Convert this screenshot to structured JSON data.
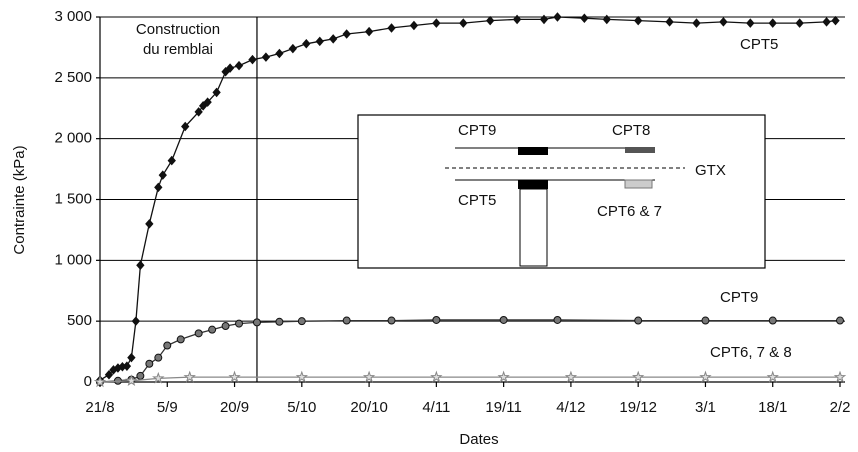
{
  "chart_data": {
    "type": "line",
    "x_label": "Dates",
    "y_label": "Contrainte (kPa)",
    "xlim": [
      "21/8",
      "2/2"
    ],
    "xticks": [
      "21/8",
      "5/9",
      "20/9",
      "5/10",
      "20/10",
      "4/11",
      "19/11",
      "4/12",
      "19/12",
      "3/1",
      "18/1",
      "2/2"
    ],
    "ylim": [
      0,
      3000
    ],
    "yticks": [
      0,
      500,
      {
        "value": 1000,
        "label": "1 000"
      },
      {
        "value": 1500,
        "label": "1 500"
      },
      {
        "value": 2000,
        "label": "2 000"
      },
      {
        "value": 2500,
        "label": "2 500"
      },
      {
        "value": 3000,
        "label": "3 000"
      }
    ],
    "grid": true,
    "annotation": {
      "lines": [
        "Construction",
        "du remblai"
      ],
      "x": "25/9"
    },
    "series": [
      {
        "name": "CPT5",
        "color": "#111111",
        "marker": "diamond",
        "x": [
          "21/8",
          "23/8",
          "24/8",
          "25/8",
          "26/8",
          "27/8",
          "28/8",
          "29/8",
          "30/8",
          "1/9",
          "3/9",
          "4/9",
          "6/9",
          "9/9",
          "12/9",
          "13/9",
          "14/9",
          "16/9",
          "18/9",
          "19/9",
          "21/9",
          "24/9",
          "27/9",
          "30/9",
          "3/10",
          "6/10",
          "9/10",
          "12/10",
          "15/10",
          "20/10",
          "25/10",
          "30/10",
          "4/11",
          "10/11",
          "16/11",
          "22/11",
          "28/11",
          "1/12",
          "7/12",
          "12/12",
          "19/12",
          "26/12",
          "1/1",
          "7/1",
          "13/1",
          "18/1",
          "24/1",
          "30/1",
          "1/2"
        ],
        "values": [
          15,
          60,
          100,
          115,
          125,
          130,
          200,
          500,
          960,
          1300,
          1600,
          1700,
          1820,
          2100,
          2220,
          2270,
          2300,
          2380,
          2550,
          2580,
          2600,
          2650,
          2670,
          2700,
          2740,
          2780,
          2800,
          2820,
          2860,
          2880,
          2910,
          2930,
          2950,
          2950,
          2970,
          2980,
          2980,
          3000,
          2990,
          2980,
          2970,
          2960,
          2950,
          2960,
          2950,
          2950,
          2950,
          2960,
          2970
        ]
      },
      {
        "name": "CPT9",
        "color": "#333333",
        "marker": "circle",
        "x": [
          "21/8",
          "25/8",
          "28/8",
          "30/8",
          "1/9",
          "3/9",
          "5/9",
          "8/9",
          "12/9",
          "15/9",
          "18/9",
          "21/9",
          "25/9",
          "30/9",
          "5/10",
          "15/10",
          "25/10",
          "4/11",
          "19/11",
          "1/12",
          "19/12",
          "3/1",
          "18/1",
          "2/2"
        ],
        "values": [
          0,
          10,
          20,
          50,
          150,
          200,
          300,
          350,
          400,
          430,
          460,
          480,
          490,
          495,
          500,
          505,
          505,
          510,
          510,
          510,
          505,
          505,
          505,
          505
        ]
      },
      {
        "name": "CPT6, 7 & 8",
        "color": "#888888",
        "marker": "star",
        "x": [
          "21/8",
          "28/8",
          "3/9",
          "10/9",
          "20/9",
          "5/10",
          "20/10",
          "4/11",
          "19/11",
          "4/12",
          "19/12",
          "3/1",
          "18/1",
          "2/2"
        ],
        "values": [
          0,
          10,
          30,
          40,
          40,
          40,
          40,
          40,
          40,
          40,
          40,
          40,
          40,
          40
        ]
      }
    ],
    "inset": {
      "top_left": "CPT9",
      "top_right": "CPT8",
      "middle": "GTX",
      "bottom_left": "CPT5",
      "bottom_right": "CPT6 & 7"
    }
  }
}
